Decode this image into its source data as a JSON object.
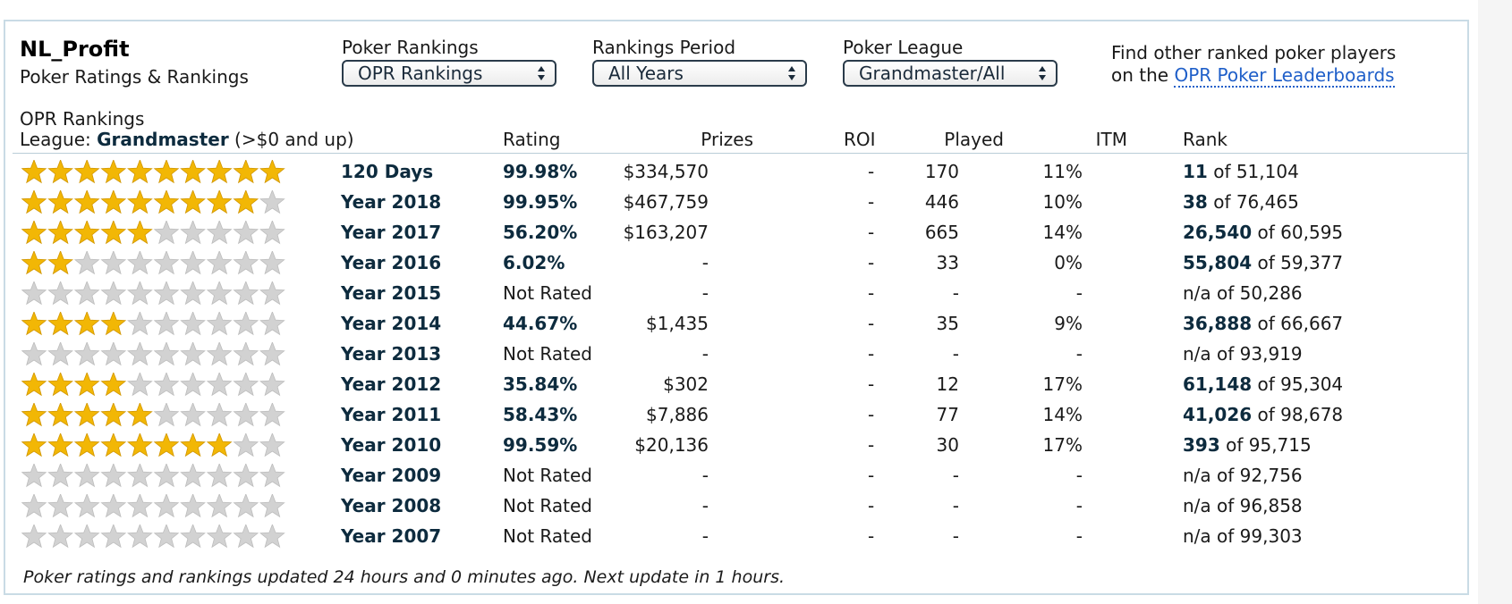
{
  "player": {
    "name": "NL_Profit",
    "subtitle": "Poker Ratings & Rankings"
  },
  "controls": [
    {
      "label": "Poker Rankings",
      "value": "OPR Rankings"
    },
    {
      "label": "Rankings Period",
      "value": "All Years"
    },
    {
      "label": "Poker League",
      "value": "Grandmaster/All"
    }
  ],
  "find": {
    "text": "Find other ranked poker players on the ",
    "link": "OPR Poker Leaderboards"
  },
  "section": {
    "title": "OPR Rankings",
    "league_prefix": "League: ",
    "league_name": "Grandmaster",
    "league_suffix": " (>$0 and up)"
  },
  "columns": {
    "rating": "Rating",
    "prizes": "Prizes",
    "roi": "ROI",
    "played": "Played",
    "itm": "ITM",
    "rank": "Rank"
  },
  "colors": {
    "star_gold": "#f2b705",
    "star_grey": "#d2d2d2",
    "link": "#1f5fc9",
    "navy": "#0d2b3e",
    "panel_border": "#c9dbe5"
  },
  "rows": [
    {
      "stars": 10,
      "period": "120 Days",
      "rating": "99.98%",
      "rated": true,
      "prizes": "$334,570",
      "roi": "-",
      "played": "170",
      "itm": "11%",
      "rank_num": "11",
      "rank_of": " of 51,104"
    },
    {
      "stars": 9,
      "period": "Year 2018",
      "rating": "99.95%",
      "rated": true,
      "prizes": "$467,759",
      "roi": "-",
      "played": "446",
      "itm": "10%",
      "rank_num": "38",
      "rank_of": " of 76,465"
    },
    {
      "stars": 5,
      "period": "Year 2017",
      "rating": "56.20%",
      "rated": true,
      "prizes": "$163,207",
      "roi": "-",
      "played": "665",
      "itm": "14%",
      "rank_num": "26,540",
      "rank_of": " of 60,595"
    },
    {
      "stars": 2,
      "period": "Year 2016",
      "rating": "6.02%",
      "rated": true,
      "prizes": "-",
      "roi": "-",
      "played": "33",
      "itm": "0%",
      "rank_num": "55,804",
      "rank_of": " of 59,377"
    },
    {
      "stars": 0,
      "period": "Year 2015",
      "rating": "Not Rated",
      "rated": false,
      "prizes": "-",
      "roi": "-",
      "played": "-",
      "itm": "-",
      "rank_num": "",
      "rank_of": "n/a of 50,286"
    },
    {
      "stars": 4,
      "period": "Year 2014",
      "rating": "44.67%",
      "rated": true,
      "prizes": "$1,435",
      "roi": "-",
      "played": "35",
      "itm": "9%",
      "rank_num": "36,888",
      "rank_of": " of 66,667"
    },
    {
      "stars": 0,
      "period": "Year 2013",
      "rating": "Not Rated",
      "rated": false,
      "prizes": "-",
      "roi": "-",
      "played": "-",
      "itm": "-",
      "rank_num": "",
      "rank_of": "n/a of 93,919"
    },
    {
      "stars": 4,
      "period": "Year 2012",
      "rating": "35.84%",
      "rated": true,
      "prizes": "$302",
      "roi": "-",
      "played": "12",
      "itm": "17%",
      "rank_num": "61,148",
      "rank_of": " of 95,304"
    },
    {
      "stars": 5,
      "period": "Year 2011",
      "rating": "58.43%",
      "rated": true,
      "prizes": "$7,886",
      "roi": "-",
      "played": "77",
      "itm": "14%",
      "rank_num": "41,026",
      "rank_of": " of 98,678"
    },
    {
      "stars": 8,
      "period": "Year 2010",
      "rating": "99.59%",
      "rated": true,
      "prizes": "$20,136",
      "roi": "-",
      "played": "30",
      "itm": "17%",
      "rank_num": "393",
      "rank_of": " of 95,715"
    },
    {
      "stars": 0,
      "period": "Year 2009",
      "rating": "Not Rated",
      "rated": false,
      "prizes": "-",
      "roi": "-",
      "played": "-",
      "itm": "-",
      "rank_num": "",
      "rank_of": "n/a of 92,756"
    },
    {
      "stars": 0,
      "period": "Year 2008",
      "rating": "Not Rated",
      "rated": false,
      "prizes": "-",
      "roi": "-",
      "played": "-",
      "itm": "-",
      "rank_num": "",
      "rank_of": "n/a of 96,858"
    },
    {
      "stars": 0,
      "period": "Year 2007",
      "rating": "Not Rated",
      "rated": false,
      "prizes": "-",
      "roi": "-",
      "played": "-",
      "itm": "-",
      "rank_num": "",
      "rank_of": "n/a of 99,303"
    }
  ],
  "footer": "Poker ratings and rankings updated 24 hours and 0 minutes ago. Next update in 1 hours."
}
